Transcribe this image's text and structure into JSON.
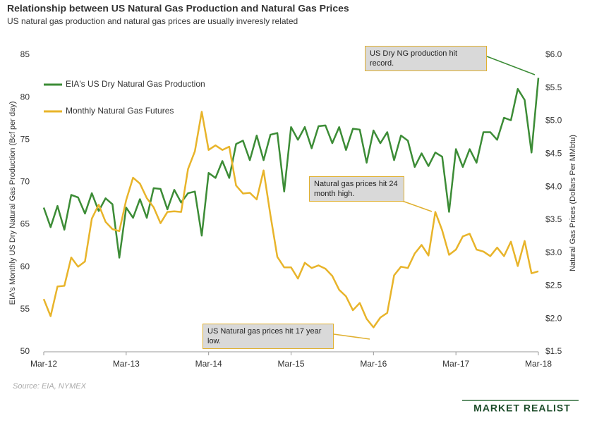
{
  "chart_data": {
    "type": "line",
    "title": "Relationship between US Natural Gas Production and  Natural Gas Prices",
    "subtitle": "US natural gas production and natural gas prices are usually inveresly related",
    "ylabel": "EIA's Monthly US Dry Natural Gas Production (Bcf per day)",
    "y2label": "Natural Gas Prices (Dollars Per MMbtu)",
    "source": "Source: EIA, NYMEX",
    "logo": "MARKET REALIST",
    "annotations": [
      "US Dry NG production hit record.",
      "Natural gas prices hit  24 month high.",
      "US Natural gas prices hit 17 year low."
    ],
    "categories": [
      "Mar-12",
      null,
      null,
      null,
      null,
      null,
      null,
      null,
      null,
      null,
      null,
      null,
      "Mar-13",
      null,
      null,
      null,
      null,
      null,
      null,
      null,
      null,
      null,
      null,
      null,
      "Mar-14",
      null,
      null,
      null,
      null,
      null,
      null,
      null,
      null,
      null,
      null,
      null,
      "Mar-15",
      null,
      null,
      null,
      null,
      null,
      null,
      null,
      null,
      null,
      null,
      null,
      "Mar-16",
      null,
      null,
      null,
      null,
      null,
      null,
      null,
      null,
      null,
      null,
      null,
      "Mar-17",
      null,
      null,
      null,
      null,
      null,
      null,
      null,
      null,
      null,
      null,
      null,
      "Mar-18"
    ],
    "series": [
      {
        "name": "EIA's US Dry Natural Gas Production",
        "color": "#3c8c36",
        "axis": "y",
        "values": [
          67.0,
          64.7,
          67.2,
          64.4,
          68.5,
          68.2,
          66.3,
          68.7,
          66.6,
          68.1,
          67.4,
          61.1,
          67.0,
          65.8,
          68.0,
          65.8,
          69.3,
          69.2,
          66.8,
          69.1,
          67.6,
          68.7,
          68.9,
          63.7,
          71.1,
          70.5,
          72.5,
          70.5,
          74.5,
          74.9,
          72.6,
          75.5,
          72.6,
          75.6,
          75.8,
          68.9,
          76.5,
          75.0,
          76.5,
          74.0,
          76.6,
          76.7,
          74.6,
          76.5,
          73.8,
          76.3,
          76.2,
          72.3,
          76.1,
          74.6,
          75.9,
          72.6,
          75.5,
          74.9,
          71.8,
          73.4,
          71.9,
          73.5,
          73.0,
          66.5,
          73.9,
          71.8,
          73.9,
          72.3,
          75.9,
          75.9,
          75.0,
          77.6,
          77.3,
          81.0,
          79.7,
          73.5,
          82.3
        ]
      },
      {
        "name": "Monthly Natural Gas Futures",
        "color": "#e8b42a",
        "axis": "y2",
        "values": [
          2.3,
          2.04,
          2.49,
          2.5,
          2.93,
          2.79,
          2.87,
          3.52,
          3.73,
          3.47,
          3.36,
          3.33,
          3.8,
          4.14,
          4.05,
          3.83,
          3.69,
          3.45,
          3.62,
          3.63,
          3.62,
          4.27,
          4.54,
          5.14,
          4.56,
          4.63,
          4.56,
          4.61,
          4.02,
          3.9,
          3.91,
          3.81,
          4.25,
          3.57,
          2.94,
          2.78,
          2.78,
          2.61,
          2.85,
          2.77,
          2.81,
          2.76,
          2.65,
          2.44,
          2.34,
          2.13,
          2.24,
          2.0,
          1.87,
          2.02,
          2.09,
          2.66,
          2.79,
          2.77,
          2.99,
          3.12,
          2.96,
          3.62,
          3.34,
          2.97,
          3.05,
          3.25,
          3.29,
          3.05,
          3.02,
          2.95,
          3.08,
          2.95,
          3.17,
          2.8,
          3.18,
          2.69,
          2.72
        ]
      }
    ],
    "ylim": [
      50,
      85
    ],
    "yticks": [
      50,
      55,
      60,
      65,
      70,
      75,
      80,
      85
    ],
    "y2lim": [
      1.5,
      6.0
    ],
    "y2ticks": [
      {
        "value": 1.5,
        "label": "$1.5"
      },
      {
        "value": 2.0,
        "label": "$2.0"
      },
      {
        "value": 2.5,
        "label": "$2.5"
      },
      {
        "value": 3.0,
        "label": "$3.0"
      },
      {
        "value": 3.5,
        "label": "$3.5"
      },
      {
        "value": 4.0,
        "label": "$4.0"
      },
      {
        "value": 4.5,
        "label": "$4.5"
      },
      {
        "value": 5.0,
        "label": "$5.0"
      },
      {
        "value": 5.5,
        "label": "$5.5"
      },
      {
        "value": 6.0,
        "label": "$6.0"
      }
    ],
    "grid": false,
    "legend": "upper left"
  }
}
